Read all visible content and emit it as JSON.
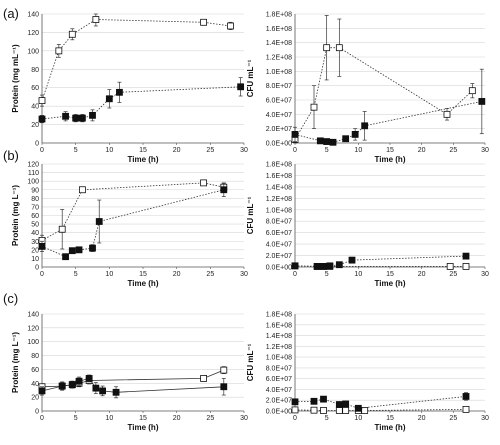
{
  "panel_labels": [
    "(a)",
    "(b)",
    "(c)"
  ],
  "chart_data": [
    {
      "type": "scatter",
      "panel": "(a)",
      "side": "left",
      "xlabel": "Time (h)",
      "ylabel": "Protein (mg mL⁻¹)",
      "xlim": [
        0,
        30
      ],
      "ylim": [
        0,
        140
      ],
      "xticks": [
        "0",
        "5",
        "10",
        "15",
        "20",
        "25",
        "30"
      ],
      "yticks": [
        "0",
        "20",
        "40",
        "60",
        "80",
        "100",
        "120",
        "140"
      ],
      "yvals": [
        0,
        20,
        40,
        60,
        80,
        100,
        120,
        140
      ],
      "series": [
        {
          "marker": "open",
          "connect": "dotted",
          "x": [
            0,
            2.5,
            4.5,
            8,
            24,
            28
          ],
          "y": [
            46,
            100,
            118,
            134,
            131,
            127
          ],
          "err": [
            6,
            7,
            6,
            7,
            3,
            4
          ]
        },
        {
          "marker": "filled",
          "connect": "dotted",
          "x": [
            0,
            3.5,
            5,
            6,
            7.5,
            10,
            11.5,
            29.5
          ],
          "y": [
            26,
            29,
            27,
            27,
            30,
            48,
            55,
            61
          ],
          "err": [
            4,
            5,
            4,
            4,
            6,
            10,
            11,
            10
          ]
        }
      ]
    },
    {
      "type": "scatter",
      "panel": "(a)",
      "side": "right",
      "xlabel": "Time (h)",
      "ylabel": "CFU mL⁻¹",
      "xlim": [
        0,
        30
      ],
      "ylim": [
        0,
        180000000
      ],
      "xticks": [
        "0",
        "5",
        "10",
        "15",
        "20",
        "25",
        "30"
      ],
      "yticks": [
        "0.0E+00",
        "2.0E+07",
        "4.0E+07",
        "6.0E+07",
        "8.0E+07",
        "1.0E+08",
        "1.2E+08",
        "1.4E+08",
        "1.6E+08",
        "1.8E+08"
      ],
      "yvals": [
        0,
        20000000,
        40000000,
        60000000,
        80000000,
        100000000,
        120000000,
        140000000,
        160000000,
        180000000
      ],
      "series": [
        {
          "marker": "open",
          "connect": "dotted",
          "x": [
            0,
            3,
            5,
            7,
            24,
            28
          ],
          "y": [
            5000000,
            50000000,
            133000000,
            133000000,
            40000000,
            73000000
          ],
          "err": [
            5000000,
            30000000,
            45000000,
            40000000,
            8000000,
            10000000
          ]
        },
        {
          "marker": "filled",
          "connect": "dotted",
          "x": [
            0,
            4,
            5,
            6,
            8,
            9.5,
            11,
            29.5
          ],
          "y": [
            12000000,
            3000000,
            2000000,
            1000000,
            6000000,
            12000000,
            24000000,
            58000000
          ],
          "err": [
            10000000,
            2000000,
            1500000,
            1000000,
            3000000,
            8000000,
            20000000,
            45000000
          ]
        }
      ]
    },
    {
      "type": "scatter",
      "panel": "(b)",
      "side": "left",
      "xlabel": "Time (h)",
      "ylabel": "Protein (mg L⁻¹)",
      "xlim": [
        0,
        30
      ],
      "ylim": [
        0,
        120
      ],
      "xticks": [
        "0",
        "5",
        "10",
        "15",
        "20",
        "25",
        "30"
      ],
      "yticks": [
        "0",
        "10",
        "20",
        "30",
        "40",
        "50",
        "60",
        "70",
        "80",
        "90",
        "100",
        "110",
        "120"
      ],
      "yvals": [
        0,
        10,
        20,
        30,
        40,
        50,
        60,
        70,
        80,
        90,
        100,
        110,
        120
      ],
      "series": [
        {
          "marker": "open",
          "connect": "dotted",
          "x": [
            0,
            3,
            6,
            24,
            27
          ],
          "y": [
            31,
            44,
            90,
            98,
            93
          ],
          "err": [
            6,
            23,
            3,
            3,
            4
          ]
        },
        {
          "marker": "filled",
          "connect": "dotted",
          "x": [
            0,
            3.5,
            4.5,
            5.5,
            7.5,
            8.5,
            27
          ],
          "y": [
            24,
            12,
            19,
            20,
            22,
            53,
            90
          ],
          "err": [
            6,
            3,
            3,
            3,
            4,
            25,
            8
          ]
        }
      ]
    },
    {
      "type": "scatter",
      "panel": "(b)",
      "side": "right",
      "xlabel": "Time (h)",
      "ylabel": "CFU mL⁻¹",
      "xlim": [
        0,
        30
      ],
      "ylim": [
        0,
        180000000
      ],
      "xticks": [
        "0",
        "5",
        "10",
        "15",
        "20",
        "25",
        "30"
      ],
      "yticks": [
        "0.0E+00",
        "2.0E+07",
        "4.0E+07",
        "6.0E+07",
        "8.0E+07",
        "1.0E+08",
        "1.2E+08",
        "1.4E+08",
        "1.6E+08",
        "1.8E+08"
      ],
      "yvals": [
        0,
        20000000,
        40000000,
        60000000,
        80000000,
        100000000,
        120000000,
        140000000,
        160000000,
        180000000
      ],
      "series": [
        {
          "marker": "open",
          "connect": "dotted",
          "x": [
            0,
            3.5,
            4.5,
            5.5,
            24.5,
            27
          ],
          "y": [
            2000000,
            1000000,
            1000000,
            1000000,
            1000000,
            1000000
          ],
          "err": [
            1000000,
            500000,
            500000,
            500000,
            500000,
            500000
          ]
        },
        {
          "marker": "filled",
          "connect": "dotted",
          "x": [
            0,
            3.5,
            4.5,
            5.5,
            7,
            9,
            27
          ],
          "y": [
            2000000,
            1000000,
            1000000,
            2000000,
            4000000,
            12000000,
            19000000
          ],
          "err": [
            1500000,
            500000,
            500000,
            1000000,
            2000000,
            5000000,
            3000000
          ]
        }
      ]
    },
    {
      "type": "scatter",
      "panel": "(c)",
      "side": "left",
      "xlabel": "Time (h)",
      "ylabel": "Protein (mg L⁻¹)",
      "xlim": [
        0,
        30
      ],
      "ylim": [
        0,
        140
      ],
      "xticks": [
        "0",
        "5",
        "10",
        "15",
        "20",
        "25",
        "30"
      ],
      "yticks": [
        "0",
        "20",
        "40",
        "60",
        "80",
        "100",
        "120",
        "140"
      ],
      "yvals": [
        0,
        20,
        40,
        60,
        80,
        100,
        120,
        140
      ],
      "series": [
        {
          "marker": "open",
          "connect": "solid",
          "x": [
            0,
            3,
            4.5,
            5.5,
            7,
            24,
            27
          ],
          "y": [
            35,
            36,
            38,
            40,
            44,
            47,
            59
          ],
          "err": [
            4,
            5,
            5,
            5,
            5,
            4,
            5
          ]
        },
        {
          "marker": "filled",
          "connect": "solid",
          "x": [
            0,
            3,
            4.5,
            5.5,
            7,
            8,
            9,
            11,
            27
          ],
          "y": [
            29,
            36,
            38,
            43,
            47,
            33,
            29,
            27,
            35
          ],
          "err": [
            6,
            6,
            5,
            6,
            5,
            8,
            7,
            8,
            12
          ]
        }
      ]
    },
    {
      "type": "scatter",
      "panel": "(c)",
      "side": "right",
      "xlabel": "Time (h)",
      "ylabel": "CFU mL⁻¹",
      "xlim": [
        0,
        30
      ],
      "ylim": [
        0,
        180000000
      ],
      "xticks": [
        "0",
        "5",
        "10",
        "15",
        "20",
        "25",
        "30"
      ],
      "yticks": [
        "0.0E+00",
        "2.0E+07",
        "4.0E+07",
        "6.0E+07",
        "8.0E+07",
        "1.0E+08",
        "1.2E+08",
        "1.4E+08",
        "1.6E+08",
        "1.8E+08"
      ],
      "yvals": [
        0,
        20000000,
        40000000,
        60000000,
        80000000,
        100000000,
        120000000,
        140000000,
        160000000,
        180000000
      ],
      "series": [
        {
          "marker": "open",
          "connect": "dotted",
          "x": [
            0,
            3,
            4.5,
            7,
            8,
            10,
            11,
            27
          ],
          "y": [
            2000000,
            1500000,
            1000000,
            1000000,
            1000000,
            1000000,
            1000000,
            3000000
          ],
          "err": [
            1000000,
            500000,
            500000,
            500000,
            500000,
            500000,
            500000,
            1000000
          ]
        },
        {
          "marker": "filled",
          "connect": "dotted",
          "x": [
            0,
            3,
            4.5,
            7,
            8,
            10,
            27
          ],
          "y": [
            17000000,
            18000000,
            22000000,
            12000000,
            13000000,
            5000000,
            27000000
          ],
          "err": [
            3000000,
            2000000,
            2000000,
            2000000,
            2000000,
            2000000,
            7000000
          ]
        }
      ]
    }
  ]
}
